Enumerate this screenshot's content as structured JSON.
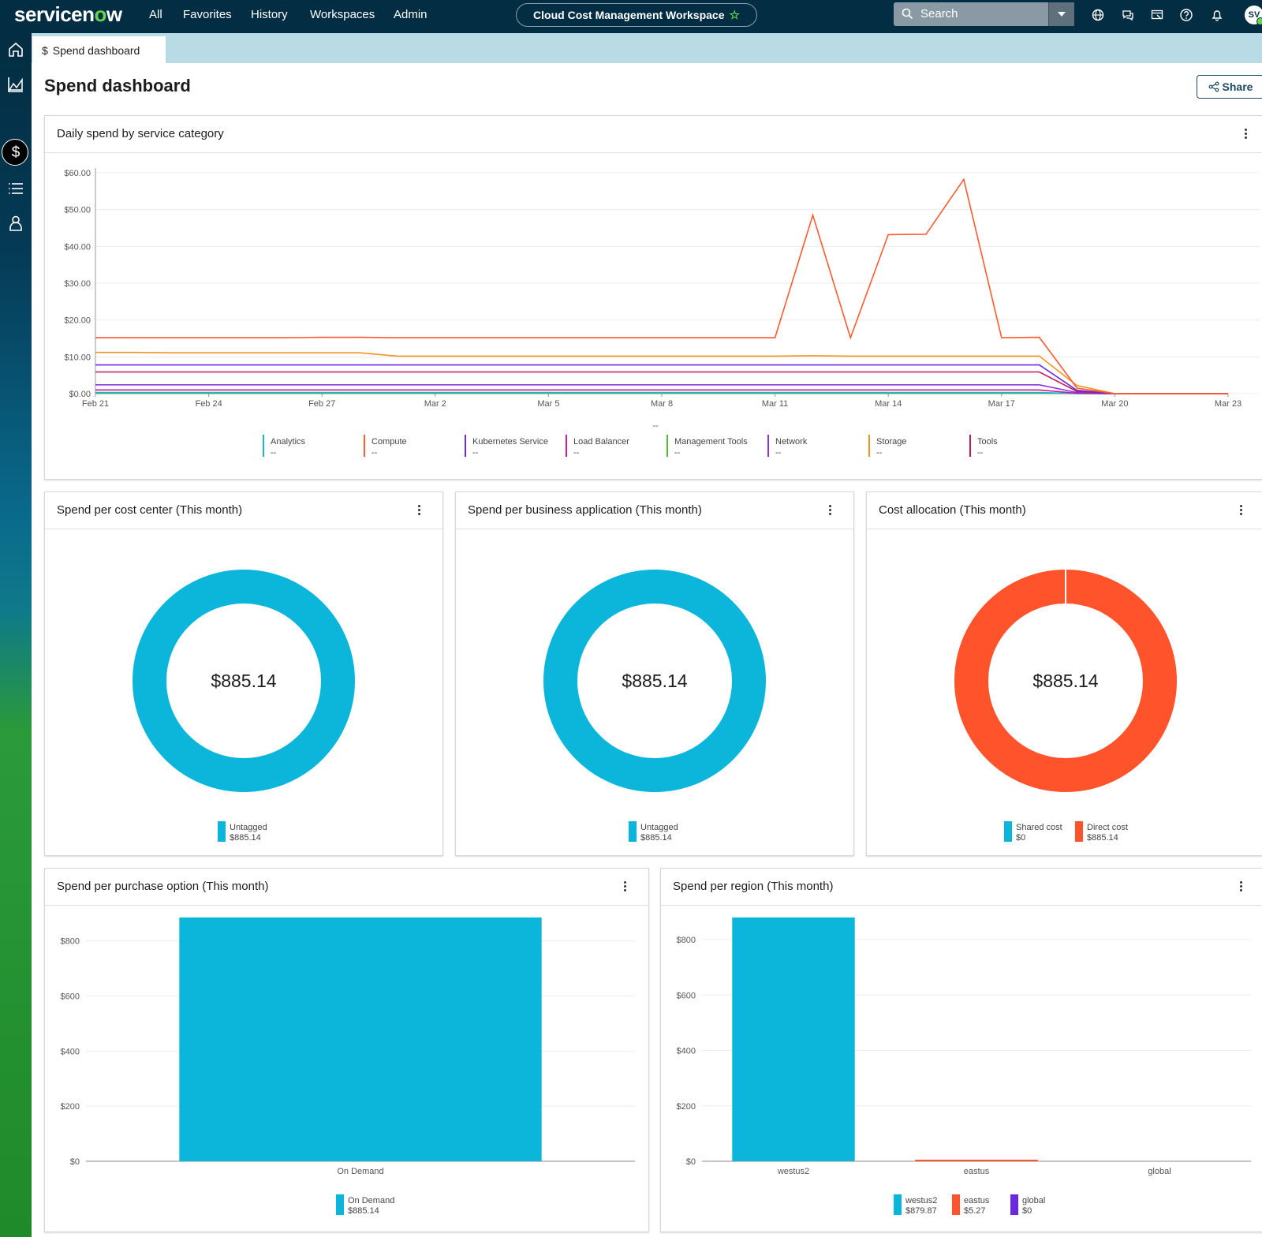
{
  "topbar": {
    "logo_pre": "servicen",
    "logo_o": "o",
    "logo_post": "w",
    "nav": [
      "All",
      "Favorites",
      "History",
      "Workspaces",
      "Admin"
    ],
    "workspace": "Cloud Cost Management Workspace",
    "search_placeholder": "Search",
    "avatar": "SV",
    "icons": [
      "globe-icon",
      "chat-icon",
      "screen-icon",
      "help-icon",
      "bell-icon"
    ]
  },
  "rail": {
    "icons": [
      "home-icon",
      "chart-icon",
      "dollar-icon",
      "list-icon",
      "user-icon"
    ],
    "active": "dollar-icon"
  },
  "tab": {
    "icon": "$",
    "label": "Spend dashboard"
  },
  "page": {
    "title": "Spend dashboard",
    "share": "Share"
  },
  "colors": {
    "Analytics": "#1ab5d6",
    "Compute": "#ff5a2e",
    "Kubernetes Service": "#6a2be0",
    "Load Balancer": "#d0199b",
    "Management Tools": "#4cbe2f",
    "Network": "#8a35d8",
    "Storage": "#f2931e",
    "Tools": "#c21a55",
    "cyan": "#0cb6da",
    "orange": "#ff532b",
    "purple": "#6a2be0"
  },
  "cards": {
    "daily": {
      "title": "Daily spend by service category",
      "empty_label": "--"
    },
    "cost_center": {
      "title": "Spend per cost center (This month)"
    },
    "business_app": {
      "title": "Spend per business application (This month)"
    },
    "allocation": {
      "title": "Cost allocation (This month)"
    },
    "purchase": {
      "title": "Spend per purchase option (This month)"
    },
    "region": {
      "title": "Spend per region (This month)"
    }
  },
  "chart_data": [
    {
      "type": "line",
      "title": "Daily spend by service category",
      "x": [
        "Feb 21",
        "Feb 22",
        "Feb 23",
        "Feb 24",
        "Feb 25",
        "Feb 26",
        "Feb 27",
        "Feb 28",
        "Mar 1",
        "Mar 2",
        "Mar 3",
        "Mar 4",
        "Mar 5",
        "Mar 6",
        "Mar 7",
        "Mar 8",
        "Mar 9",
        "Mar 10",
        "Mar 11",
        "Mar 12",
        "Mar 13",
        "Mar 14",
        "Mar 15",
        "Mar 16",
        "Mar 17",
        "Mar 18",
        "Mar 19",
        "Mar 20",
        "Mar 21",
        "Mar 22",
        "Mar 23"
      ],
      "x_ticks": [
        "Feb 21",
        "Feb 24",
        "Feb 27",
        "Mar 2",
        "Mar 5",
        "Mar 8",
        "Mar 11",
        "Mar 14",
        "Mar 17",
        "Mar 20",
        "Mar 23"
      ],
      "y_ticks": [
        "$0.00",
        "$10.00",
        "$20.00",
        "$30.00",
        "$40.00",
        "$50.00",
        "$60.00"
      ],
      "ylim": [
        0,
        60
      ],
      "series": [
        {
          "name": "Compute",
          "values": [
            15.2,
            15.2,
            15.2,
            15.2,
            15.2,
            15.2,
            15.3,
            15.3,
            15.2,
            15.2,
            15.2,
            15.2,
            15.2,
            15.2,
            15.2,
            15.2,
            15.2,
            15.2,
            15.2,
            48.5,
            15.2,
            43.2,
            43.3,
            58.2,
            15.2,
            15.3,
            1.5,
            0,
            0,
            0,
            0
          ]
        },
        {
          "name": "Storage",
          "values": [
            11.2,
            11.2,
            11.1,
            11.1,
            11.1,
            11.1,
            11.1,
            11.1,
            10.2,
            10.2,
            10.2,
            10.2,
            10.2,
            10.2,
            10.2,
            10.2,
            10.2,
            10.2,
            10.2,
            10.3,
            10.2,
            10.2,
            10.2,
            10.2,
            10.2,
            10.2,
            2.2,
            0,
            0,
            0,
            0
          ]
        },
        {
          "name": "Kubernetes Service",
          "values": [
            7.8,
            7.8,
            7.8,
            7.8,
            7.8,
            7.8,
            7.8,
            7.8,
            7.8,
            7.8,
            7.8,
            7.8,
            7.8,
            7.8,
            7.8,
            7.8,
            7.8,
            7.8,
            7.8,
            7.8,
            7.8,
            7.8,
            7.8,
            7.8,
            7.8,
            7.8,
            0.9,
            0,
            0,
            0,
            0
          ]
        },
        {
          "name": "Tools",
          "values": [
            5.9,
            5.9,
            5.9,
            5.9,
            5.9,
            5.9,
            5.9,
            5.9,
            5.9,
            5.9,
            5.9,
            5.9,
            5.9,
            5.9,
            5.9,
            5.9,
            5.9,
            5.9,
            5.9,
            5.9,
            5.9,
            5.9,
            5.9,
            5.9,
            5.9,
            5.9,
            0.6,
            0,
            0,
            0,
            0
          ]
        },
        {
          "name": "Network",
          "values": [
            2.4,
            2.4,
            2.4,
            2.4,
            2.4,
            2.4,
            2.4,
            2.4,
            2.4,
            2.4,
            2.4,
            2.4,
            2.4,
            2.4,
            2.4,
            2.4,
            2.4,
            2.4,
            2.4,
            2.4,
            2.4,
            2.4,
            2.4,
            2.4,
            2.4,
            2.4,
            0.3,
            0,
            0,
            0,
            0
          ]
        },
        {
          "name": "Load Balancer",
          "values": [
            1.0,
            1.0,
            1.0,
            1.0,
            1.0,
            1.0,
            1.0,
            1.0,
            1.0,
            1.0,
            1.0,
            1.0,
            1.0,
            1.0,
            1.0,
            1.0,
            1.0,
            1.0,
            1.0,
            1.0,
            1.0,
            1.0,
            1.0,
            1.0,
            1.0,
            1.0,
            0.1,
            0,
            0,
            0,
            0
          ]
        },
        {
          "name": "Analytics",
          "values": [
            0.3,
            0.3,
            0.3,
            0.3,
            0.3,
            0.3,
            0.3,
            0.3,
            0.3,
            0.3,
            0.3,
            0.3,
            0.3,
            0.3,
            0.3,
            0.3,
            0.3,
            0.3,
            0.3,
            0.3,
            0.3,
            0.3,
            0.3,
            0.3,
            0.3,
            0.3,
            0.05,
            0,
            0,
            0,
            0
          ]
        },
        {
          "name": "Management Tools",
          "values": [
            0.1,
            0.1,
            0.1,
            0.1,
            0.1,
            0.1,
            0.1,
            0.1,
            0.1,
            0.1,
            0.1,
            0.1,
            0.1,
            0.1,
            0.1,
            0.1,
            0.1,
            0.1,
            0.1,
            0.1,
            0.1,
            0.1,
            0.1,
            0.1,
            0.1,
            0.1,
            0.0,
            0,
            0,
            0,
            0
          ]
        }
      ],
      "legend": [
        {
          "name": "Analytics",
          "value": "--"
        },
        {
          "name": "Compute",
          "value": "--"
        },
        {
          "name": "Kubernetes Service",
          "value": "--"
        },
        {
          "name": "Load Balancer",
          "value": "--"
        },
        {
          "name": "Management Tools",
          "value": "--"
        },
        {
          "name": "Network",
          "value": "--"
        },
        {
          "name": "Storage",
          "value": "--"
        },
        {
          "name": "Tools",
          "value": "--"
        }
      ],
      "grid": true
    },
    {
      "type": "pie",
      "title": "Spend per cost center (This month)",
      "center_label": "$885.14",
      "slices": [
        {
          "name": "Untagged",
          "value": 885.14,
          "label": "$885.14",
          "color": "#0cb6da"
        }
      ]
    },
    {
      "type": "pie",
      "title": "Spend per business application (This month)",
      "center_label": "$885.14",
      "slices": [
        {
          "name": "Untagged",
          "value": 885.14,
          "label": "$885.14",
          "color": "#0cb6da"
        }
      ]
    },
    {
      "type": "pie",
      "title": "Cost allocation (This month)",
      "center_label": "$885.14",
      "slices": [
        {
          "name": "Shared cost",
          "value": 0,
          "label": "$0",
          "color": "#0cb6da"
        },
        {
          "name": "Direct cost",
          "value": 885.14,
          "label": "$885.14",
          "color": "#ff532b"
        }
      ]
    },
    {
      "type": "bar",
      "title": "Spend per purchase option (This month)",
      "categories": [
        "On Demand"
      ],
      "values": [
        885.14
      ],
      "value_labels": [
        "$885.14"
      ],
      "colors": [
        "#0cb6da"
      ],
      "y_ticks": [
        "$0",
        "$200",
        "$400",
        "$600",
        "$800"
      ],
      "ylim": [
        0,
        885.14
      ]
    },
    {
      "type": "bar",
      "title": "Spend per region (This month)",
      "categories": [
        "westus2",
        "eastus",
        "global"
      ],
      "values": [
        879.87,
        5.27,
        0
      ],
      "value_labels": [
        "$879.87",
        "$5.27",
        "$0"
      ],
      "colors": [
        "#0cb6da",
        "#ff532b",
        "#6a2be0"
      ],
      "y_ticks": [
        "$0",
        "$200",
        "$400",
        "$600",
        "$800"
      ],
      "ylim": [
        0,
        879.87
      ]
    }
  ]
}
